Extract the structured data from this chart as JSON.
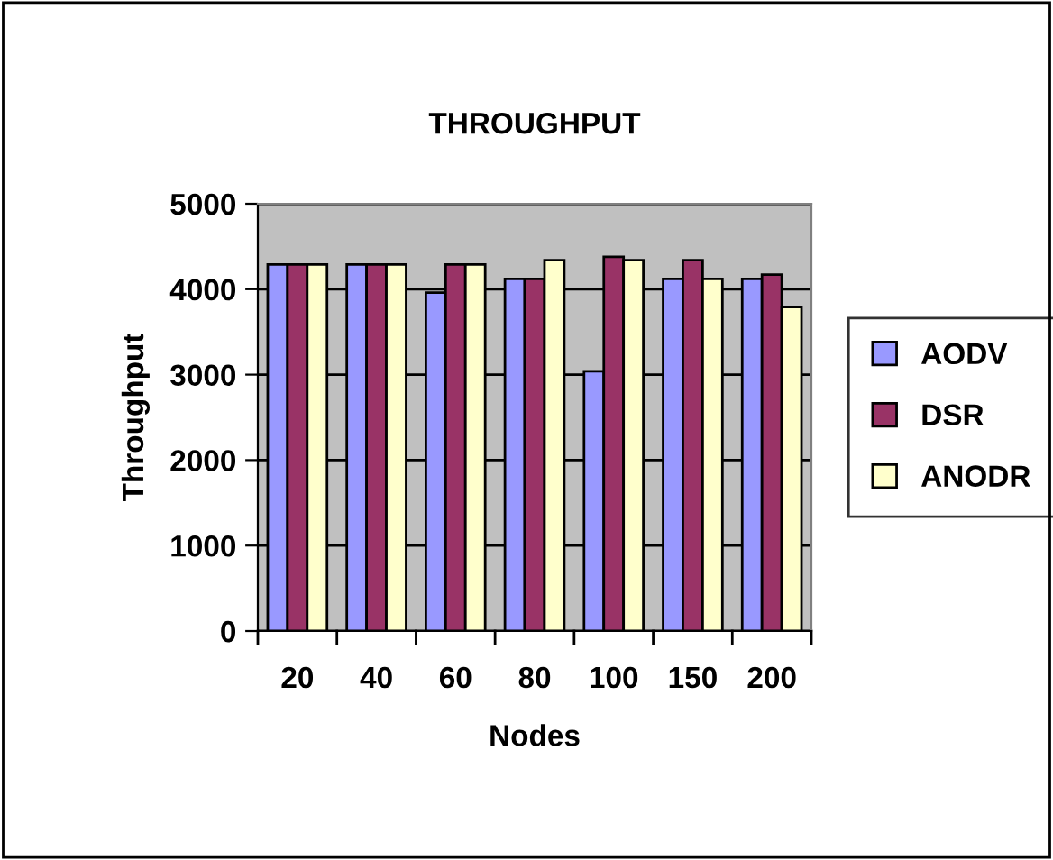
{
  "chart_data": {
    "type": "bar",
    "title": "THROUGHPUT",
    "xlabel": "Nodes",
    "ylabel": "Throughput",
    "categories": [
      "20",
      "40",
      "60",
      "80",
      "100",
      "150",
      "200"
    ],
    "series": [
      {
        "name": "AODV",
        "color": "#9999ff",
        "values": [
          4290,
          4290,
          3960,
          4120,
          3040,
          4120,
          4120
        ]
      },
      {
        "name": "DSR",
        "color": "#993366",
        "values": [
          4290,
          4290,
          4290,
          4120,
          4380,
          4340,
          4170
        ]
      },
      {
        "name": "ANODR",
        "color": "#ffffcc",
        "values": [
          4290,
          4290,
          4290,
          4340,
          4340,
          4120,
          3790
        ]
      }
    ],
    "ylim": [
      0,
      5000
    ],
    "yticks": [
      0,
      1000,
      2000,
      3000,
      4000,
      5000
    ],
    "grid": "y",
    "legend": "right"
  }
}
